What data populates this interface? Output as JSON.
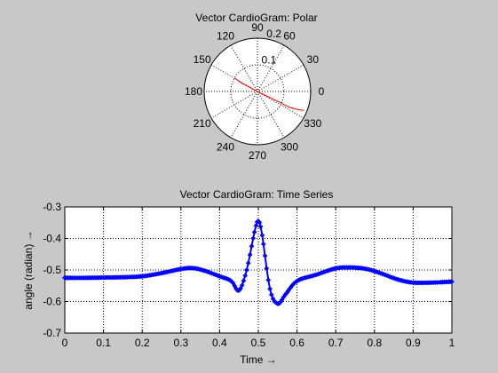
{
  "window": {
    "background": "#c8c8c8"
  },
  "chart_data": [
    {
      "type": "polar",
      "title": "Vector CardioGram: Polar",
      "angle_labels": [
        "0",
        "30",
        "60",
        "90",
        "120",
        "150",
        "180",
        "210",
        "240",
        "270",
        "300",
        "330"
      ],
      "angle_values_deg": [
        0,
        30,
        60,
        90,
        120,
        150,
        180,
        210,
        240,
        270,
        300,
        330
      ],
      "radial_ticks": [
        0.1,
        0.2
      ],
      "radial_tick_labels": [
        "0.1",
        "0.2"
      ],
      "rlim": [
        0,
        0.2
      ],
      "line_color": "#ff0000",
      "trace": {
        "description_units": "x,y in data units (r*cos, r*sin)",
        "x": [
          -0.085,
          -0.06,
          -0.03,
          -0.005,
          0.02,
          0.045,
          0.07,
          0.09,
          0.105,
          0.118,
          0.13,
          0.145,
          0.16,
          0.175
        ],
        "y": [
          0.05,
          0.032,
          0.016,
          0.002,
          -0.01,
          -0.022,
          -0.034,
          -0.044,
          -0.052,
          -0.058,
          -0.062,
          -0.066,
          -0.069,
          -0.071
        ]
      }
    },
    {
      "type": "line",
      "title": "Vector CardioGram: Time Series",
      "xlabel": "Time →",
      "ylabel": "angle (radian) →",
      "xlim": [
        0,
        1
      ],
      "ylim": [
        -0.7,
        -0.3
      ],
      "xticks": [
        0,
        0.1,
        0.2,
        0.3,
        0.4,
        0.5,
        0.6,
        0.7,
        0.8,
        0.9,
        1
      ],
      "xtick_labels": [
        "0",
        "0.1",
        "0.2",
        "0.3",
        "0.4",
        "0.5",
        "0.6",
        "0.7",
        "0.8",
        "0.9",
        "1"
      ],
      "yticks": [
        -0.3,
        -0.4,
        -0.5,
        -0.6,
        -0.7
      ],
      "ytick_labels": [
        "-0.3",
        "-0.4",
        "-0.5",
        "-0.6",
        "-0.7"
      ],
      "grid": true,
      "series_color": "#0000ff",
      "marker": "diamond",
      "series": [
        {
          "name": "angle",
          "x": [
            0,
            0.05,
            0.1,
            0.15,
            0.2,
            0.25,
            0.3,
            0.33,
            0.36,
            0.4,
            0.43,
            0.45,
            0.47,
            0.49,
            0.5,
            0.51,
            0.53,
            0.55,
            0.57,
            0.6,
            0.65,
            0.7,
            0.74,
            0.78,
            0.82,
            0.86,
            0.9,
            0.95,
            1
          ],
          "y": [
            -0.525,
            -0.525,
            -0.524,
            -0.523,
            -0.52,
            -0.51,
            -0.497,
            -0.494,
            -0.502,
            -0.52,
            -0.535,
            -0.565,
            -0.5,
            -0.38,
            -0.345,
            -0.39,
            -0.56,
            -0.607,
            -0.578,
            -0.535,
            -0.515,
            -0.495,
            -0.492,
            -0.497,
            -0.512,
            -0.53,
            -0.54,
            -0.54,
            -0.537
          ]
        }
      ]
    }
  ]
}
